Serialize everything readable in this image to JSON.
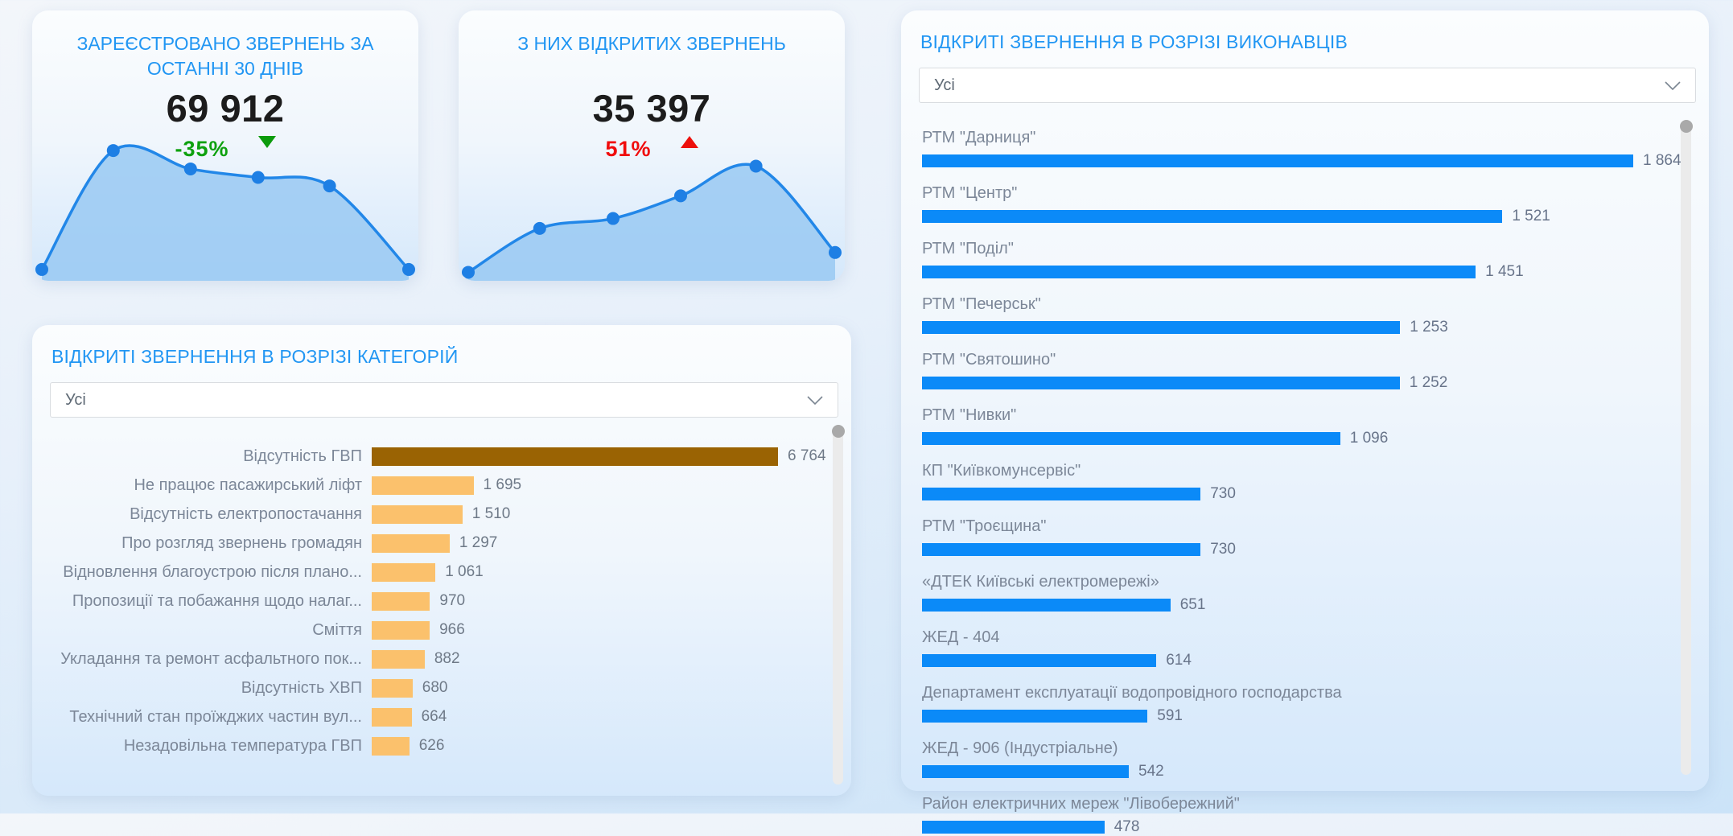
{
  "page": {
    "accent_blue": "#2196F3",
    "bar_blue": "#0B8AF8",
    "bar_tan": "#FBC16C",
    "bar_brown": "#9A6303",
    "green": "#0C9B0C",
    "red": "#ED100C",
    "sparkline_line": "#2287E8",
    "sparkline_fill": "#99C9F2",
    "sparkline_dot": "#1E7FE4"
  },
  "kpi_cards": [
    {
      "title": "ЗАРЕЄСТРОВАНО ЗВЕРНЕНЬ ЗА ОСТАННІ 30 ДНІВ",
      "value": "69 912",
      "change": "-35%",
      "trend": "down",
      "change_color": "#0EA10E"
    },
    {
      "title": "З НИХ ВІДКРИТИХ ЗВЕРНЕНЬ",
      "value": "35 397",
      "change": "51%",
      "trend": "up",
      "change_color": "#F00C0C"
    }
  ],
  "category_card": {
    "title": "ВІДКРИТІ ЗВЕРНЕННЯ В РОЗРІЗІ КАТЕГОРІЙ",
    "filter": {
      "value": "Усі"
    }
  },
  "executor_card": {
    "title": "ВІДКРИТІ ЗВЕРНЕННЯ В РОЗРІЗІ ВИКОНАВЦІВ",
    "filter": {
      "value": "Усі"
    }
  },
  "chart_data": [
    {
      "id": "kpi1_sparkline",
      "type": "area",
      "title": "ЗАРЕЄСТРОВАНО ЗВЕРНЕНЬ ЗА ОСТАННІ 30 ДНІВ",
      "points_norm": [
        [
          0.025,
          0.92
        ],
        [
          0.21,
          0.08
        ],
        [
          0.41,
          0.21
        ],
        [
          0.585,
          0.27
        ],
        [
          0.77,
          0.33
        ],
        [
          0.975,
          0.92
        ]
      ]
    },
    {
      "id": "kpi2_sparkline",
      "type": "area",
      "title": "З НИХ ВІДКРИТИХ ЗВЕРНЕНЬ",
      "points_norm": [
        [
          0.025,
          0.94
        ],
        [
          0.21,
          0.63
        ],
        [
          0.4,
          0.56
        ],
        [
          0.575,
          0.4
        ],
        [
          0.77,
          0.19
        ],
        [
          0.975,
          0.8
        ]
      ]
    },
    {
      "id": "categories",
      "type": "bar",
      "orientation": "horizontal",
      "title": "ВІДКРИТІ ЗВЕРНЕННЯ В РОЗРІЗІ КАТЕГОРІЙ",
      "categories": [
        "Відсутність ГВП",
        "Не працює пасажирський ліфт",
        "Відсутність електропостачання",
        "Про розгляд звернень громадян",
        "Відновлення благоустрою після плано...",
        "Пропозиції та побажання щодо налаг...",
        "Сміття",
        "Укладання та ремонт асфальтного пок...",
        "Відсутність ХВП",
        "Технічний стан проїжджих частин вул...",
        "Незадовільна температура ГВП"
      ],
      "values": [
        6764,
        1695,
        1510,
        1297,
        1061,
        970,
        966,
        882,
        680,
        664,
        626
      ],
      "value_labels": [
        "6 764",
        "1 695",
        "1 510",
        "1 297",
        "1 061",
        "970",
        "966",
        "882",
        "680",
        "664",
        "626"
      ],
      "bar_color_first": "#9A6303",
      "bar_color_default": "#FBC16C"
    },
    {
      "id": "executors",
      "type": "bar",
      "orientation": "horizontal",
      "title": "ВІДКРИТІ ЗВЕРНЕННЯ В РОЗРІЗІ ВИКОНАВЦІВ",
      "categories": [
        "РТМ \"Дарниця\"",
        "РТМ \"Центр\"",
        "РТМ \"Поділ\"",
        "РТМ \"Печерськ\"",
        "РТМ \"Святошино\"",
        "РТМ \"Нивки\"",
        "КП \"Київкомунсервіс\"",
        "РТМ \"Троєщина\"",
        "«ДТЕК Київські електромережі»",
        "ЖЕД - 404",
        "Департамент експлуатації водопровідного господарства",
        "ЖЕД - 906 (Індустріальне)",
        "Район електричних мереж \"Лівобережний\""
      ],
      "values": [
        1864,
        1521,
        1451,
        1253,
        1252,
        1096,
        730,
        730,
        651,
        614,
        591,
        542,
        478
      ],
      "value_labels": [
        "1 864",
        "1 521",
        "1 451",
        "1 253",
        "1 252",
        "1 096",
        "730",
        "730",
        "651",
        "614",
        "591",
        "542",
        "478"
      ],
      "bar_color": "#0B8AF8"
    }
  ]
}
